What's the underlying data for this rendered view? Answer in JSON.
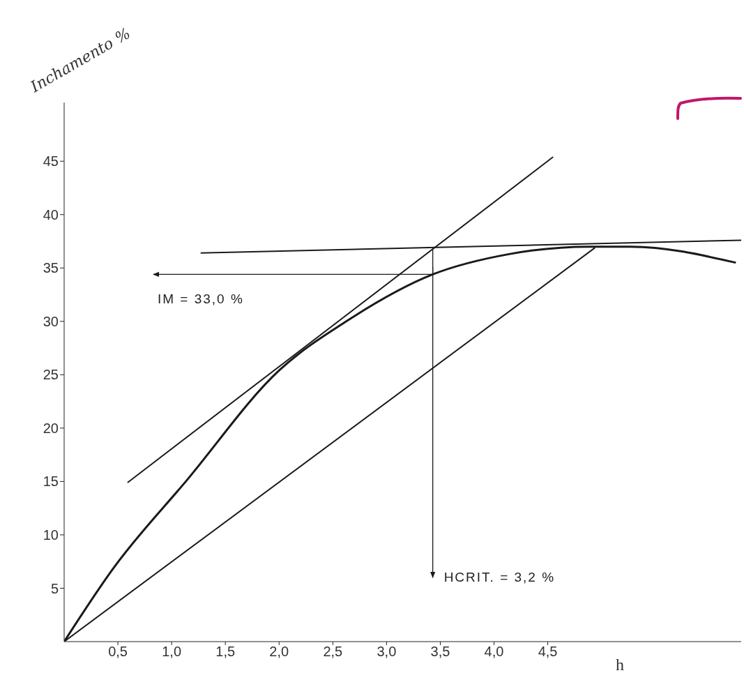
{
  "chart_data": {
    "type": "line",
    "ylabel": "Inchamento %",
    "xlabel": "h",
    "xlim": [
      0,
      6.3
    ],
    "xticks": [
      {
        "value": 0.5,
        "label": "0,5"
      },
      {
        "value": 1.0,
        "label": "1,0"
      },
      {
        "value": 1.5,
        "label": "1,5"
      },
      {
        "value": 2.0,
        "label": "2,0"
      },
      {
        "value": 2.5,
        "label": "2,5"
      },
      {
        "value": 3.0,
        "label": "3,0"
      },
      {
        "value": 3.5,
        "label": "3,5"
      },
      {
        "value": 4.0,
        "label": "4,0"
      },
      {
        "value": 4.5,
        "label": "4,5"
      }
    ],
    "ylim": [
      0,
      50.5
    ],
    "yticks": [
      5,
      10,
      15,
      20,
      25,
      30,
      35,
      40,
      45
    ],
    "grid": false,
    "marker": "none",
    "line_style": "solid",
    "series": [
      {
        "color": "#1a1a1a",
        "x": [
          0,
          0.46,
          1.14,
          2.0,
          2.64,
          3.43,
          4.14,
          4.89,
          5.27,
          6.25
        ],
        "values": [
          0,
          6.9,
          15.1,
          25.4,
          30.1,
          34.4,
          36.3,
          37.0,
          37.0,
          35.5
        ]
      },
      {
        "color": "#1a1a1a",
        "x": [
          0.59,
          4.55
        ],
        "values": [
          14.9,
          45.4
        ]
      },
      {
        "color": "#1a1a1a",
        "x": [
          1.27,
          6.3
        ],
        "values": [
          36.4,
          37.6
        ]
      },
      {
        "color": "#1a1a1a",
        "x": [
          0,
          4.94
        ],
        "values": [
          0,
          36.9
        ]
      },
      {
        "color": "#1a1a1a",
        "x": [
          3.43,
          3.43
        ],
        "values": [
          36.8,
          6.0
        ]
      },
      {
        "color": "#1a1a1a",
        "x": [
          3.43,
          3.43,
          0.83
        ],
        "values": [
          35.1,
          34.4,
          34.4
        ]
      }
    ],
    "annotations": [
      {
        "text": "IM = 33,0 %",
        "x": 0.83,
        "y": 34.4
      },
      {
        "text": "HCRIT. = 3,2 %",
        "x": 3.43,
        "y": 6.0
      }
    ]
  }
}
